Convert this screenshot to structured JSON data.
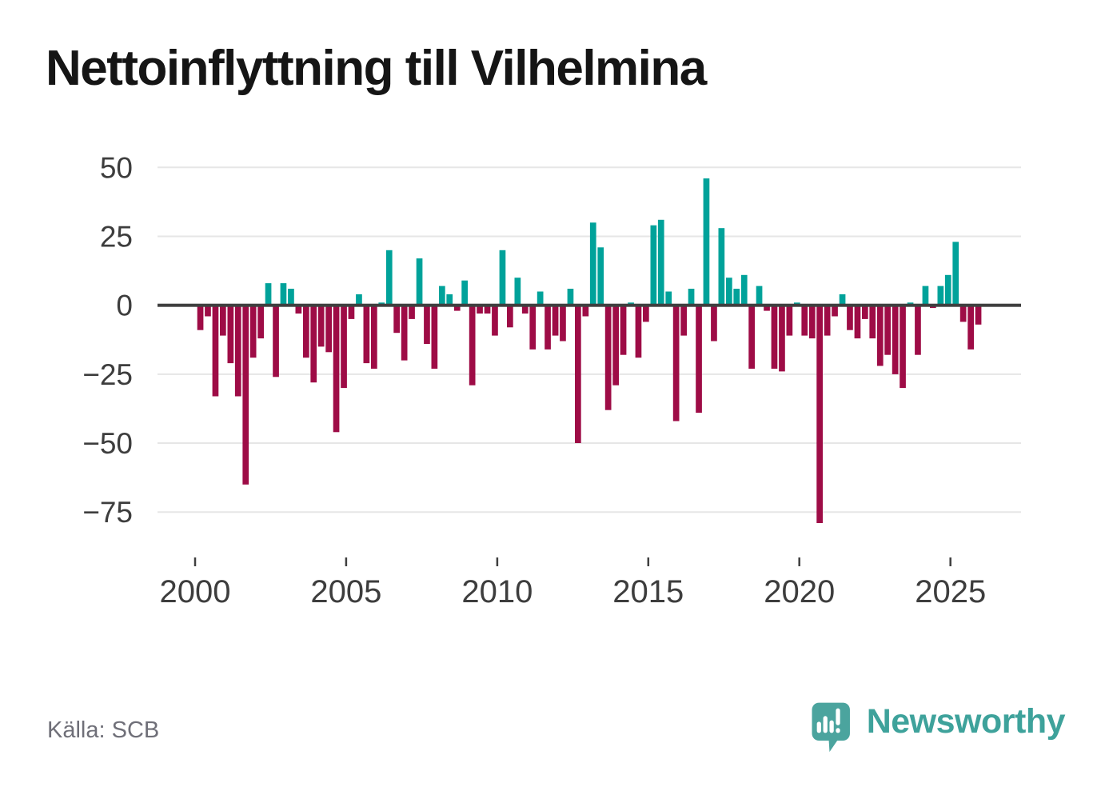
{
  "title": "Nettoinflyttning till Vilhelmina",
  "source_note": "Källa: SCB",
  "branding": {
    "name": "Newsworthy",
    "icon": "newsworthy-speech-bubble-chart-icon"
  },
  "colors": {
    "positive_bar": "#00A29A",
    "negative_bar": "#9E0C46",
    "axis_line": "#3F3F3F",
    "gridline": "#E6E6E6",
    "tick_text": "#3D3D3D",
    "title_text": "#151515",
    "source_text": "#6F6F78",
    "brand_teal": "#3EA29B",
    "brand_bubble": "#4BA49E"
  },
  "chart_data": {
    "type": "bar",
    "title": "Nettoinflyttning till Vilhelmina",
    "x_frequency": "quarterly",
    "x_start_period": "2000 Q1",
    "x_end_period": "2025 Q4",
    "x_tick_labels": [
      "2000",
      "2005",
      "2010",
      "2015",
      "2020",
      "2025"
    ],
    "y_ticks": [
      50,
      25,
      0,
      -25,
      -50,
      -75
    ],
    "y_tick_labels": [
      "50",
      "25",
      "0",
      "−25",
      "−50",
      "−75"
    ],
    "ylim": [
      -85,
      55
    ],
    "grid": "horizontal",
    "legend": "none",
    "values": [
      -9,
      -4,
      -33,
      -11,
      -21,
      -33,
      -65,
      -19,
      -12,
      8,
      -26,
      8,
      6,
      -3,
      -19,
      -28,
      -15,
      -17,
      -46,
      -30,
      -5,
      4,
      -21,
      -23,
      1,
      20,
      -10,
      -20,
      -5,
      17,
      -14,
      -23,
      7,
      4,
      -2,
      9,
      -29,
      -3,
      -3,
      -11,
      20,
      -8,
      10,
      -3,
      -16,
      5,
      -16,
      -11,
      -13,
      6,
      -50,
      -4,
      30,
      21,
      -38,
      -29,
      -18,
      1,
      -19,
      -6,
      29,
      31,
      5,
      -42,
      -11,
      6,
      -39,
      46,
      -13,
      28,
      10,
      6,
      11,
      -23,
      7,
      -2,
      -23,
      -24,
      -11,
      1,
      -11,
      -12,
      -79,
      -11,
      -4,
      4,
      -9,
      -12,
      -5,
      -12,
      -22,
      -18,
      -25,
      -30,
      1,
      -18,
      7,
      -1,
      7,
      11,
      23,
      -6,
      -16,
      -7
    ]
  }
}
